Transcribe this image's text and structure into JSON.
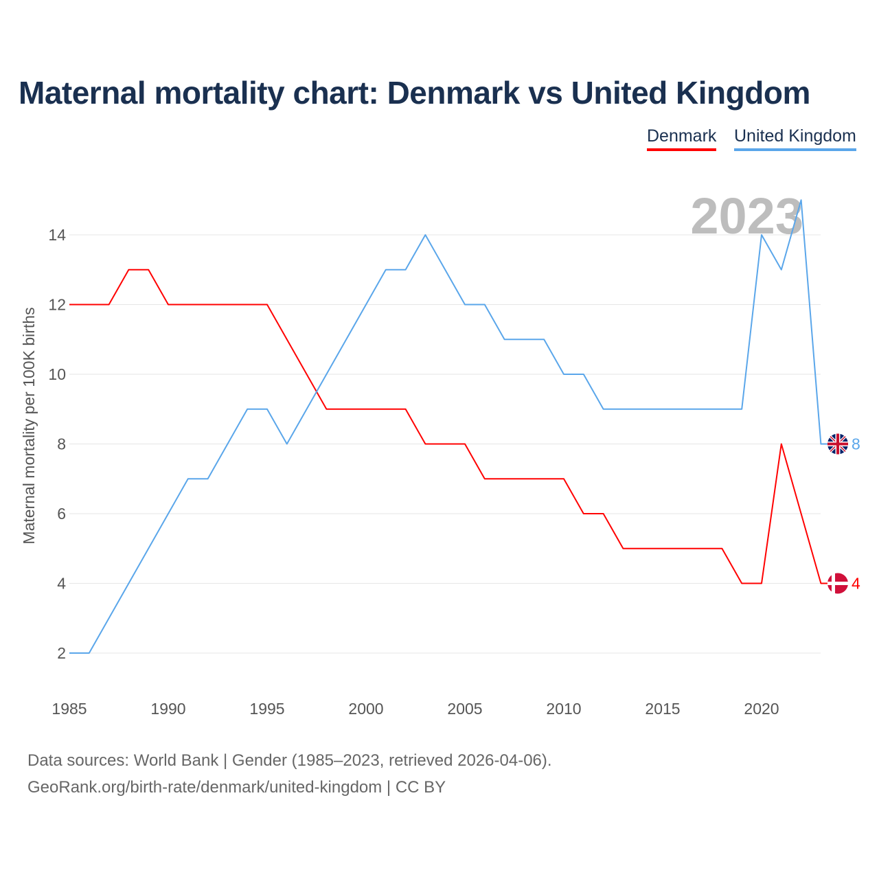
{
  "chart_data": {
    "type": "line",
    "title": "Maternal mortality chart: Denmark vs United Kingdom",
    "xlabel": "",
    "ylabel": "Maternal mortality per 100K births",
    "xlim": [
      1985,
      2023
    ],
    "ylim": [
      1,
      15.5
    ],
    "x_ticks": [
      1985,
      1990,
      1995,
      2000,
      2005,
      2010,
      2015,
      2020
    ],
    "y_ticks": [
      2,
      4,
      6,
      8,
      10,
      12,
      14
    ],
    "grid": true,
    "legend_position": "top-right",
    "year_label": "2023",
    "x": [
      1985,
      1986,
      1987,
      1988,
      1989,
      1990,
      1991,
      1992,
      1993,
      1994,
      1995,
      1996,
      1997,
      1998,
      1999,
      2000,
      2001,
      2002,
      2003,
      2004,
      2005,
      2006,
      2007,
      2008,
      2009,
      2010,
      2011,
      2012,
      2013,
      2014,
      2015,
      2016,
      2017,
      2018,
      2019,
      2020,
      2021,
      2022,
      2023
    ],
    "series": [
      {
        "name": "Denmark",
        "color": "#ff0000",
        "end_label": "4",
        "values": [
          12,
          12,
          12,
          13,
          13,
          12,
          12,
          12,
          12,
          12,
          12,
          11,
          10,
          9,
          9,
          9,
          9,
          9,
          8,
          8,
          8,
          7,
          7,
          7,
          7,
          7,
          6,
          6,
          5,
          5,
          5,
          5,
          5,
          5,
          4,
          4,
          8,
          6,
          4
        ]
      },
      {
        "name": "United Kingdom",
        "color": "#5aa6ea",
        "end_label": "8",
        "values": [
          2,
          2,
          3,
          4,
          5,
          6,
          7,
          7,
          8,
          9,
          9,
          8,
          9,
          10,
          11,
          12,
          13,
          13,
          14,
          13,
          12,
          12,
          11,
          11,
          11,
          10,
          10,
          9,
          9,
          9,
          9,
          9,
          9,
          9,
          9,
          14,
          13,
          15,
          8
        ]
      }
    ]
  },
  "footer": {
    "line1": "Data sources: World Bank | Gender (1985–2023, retrieved 2026-04-06).",
    "line2": "GeoRank.org/birth-rate/denmark/united-kingdom | CC BY"
  }
}
